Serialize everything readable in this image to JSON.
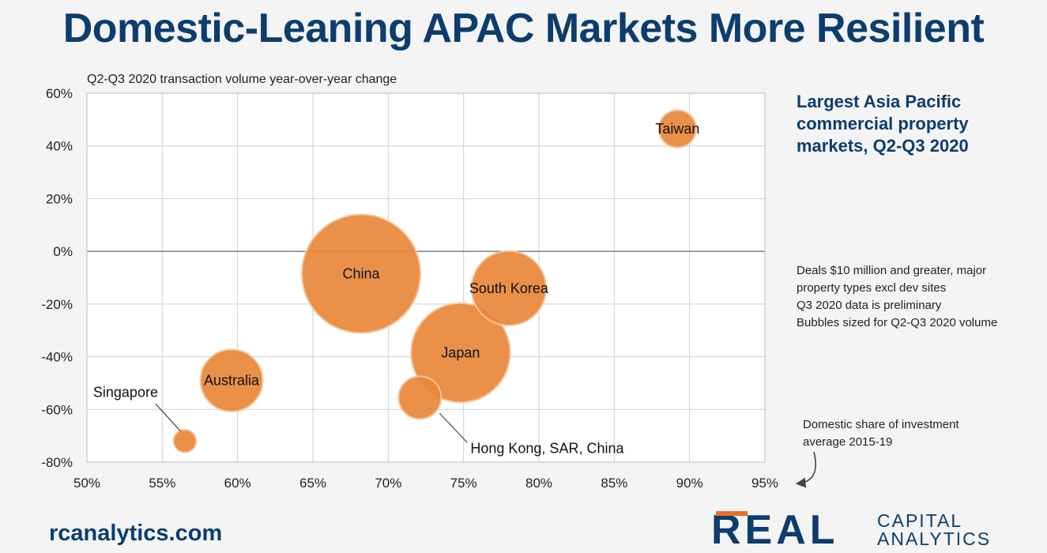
{
  "title": "Domestic-Leaning APAC Markets More Resilient",
  "side_title": [
    "Largest Asia Pacific",
    "commercial property",
    "markets, Q2-Q3 2020"
  ],
  "notes": [
    "Deals $10 million and greater, major",
    "property types excl dev sites",
    "Q3 2020 data is preliminary",
    "Bubbles sized for Q2-Q3 2020 volume"
  ],
  "website": "rcanalytics.com",
  "logo": {
    "word": "REAL",
    "line1": "CAPITAL",
    "line2": "ANALYTICS"
  },
  "colors": {
    "title": "#0c3d6e",
    "bubble": "#e8873a",
    "bubble_edge": "#f6c59a",
    "grid": "#cfcfcf",
    "accent": "#e8702a"
  },
  "chart_data": {
    "type": "scatter",
    "subtitle": "Q2-Q3 2020 transaction volume year-over-year change",
    "xlabel": [
      "Domestic share of investment",
      "average 2015-19"
    ],
    "x_ticks": [
      "50%",
      "55%",
      "60%",
      "65%",
      "70%",
      "75%",
      "80%",
      "85%",
      "90%",
      "95%"
    ],
    "y_ticks": [
      "60%",
      "40%",
      "20%",
      "0%",
      "-20%",
      "-40%",
      "-60%",
      "-80%"
    ],
    "xlim": [
      50,
      95
    ],
    "ylim": [
      -80,
      60
    ],
    "points": [
      {
        "name": "China",
        "x": 68.2,
        "y": -8.5,
        "volume": 4.96
      },
      {
        "name": "South Korea",
        "x": 78.0,
        "y": -14.0,
        "volume": 1.96
      },
      {
        "name": "Japan",
        "x": 74.8,
        "y": -38.5,
        "volume": 3.46
      },
      {
        "name": "Australia",
        "x": 59.6,
        "y": -49.0,
        "volume": 1.36
      },
      {
        "name": "Hong Kong, SAR, China",
        "x": 72.1,
        "y": -55.5,
        "volume": 0.64
      },
      {
        "name": "Singapore",
        "x": 56.5,
        "y": -72.0,
        "volume": 0.18
      },
      {
        "name": "Taiwan",
        "x": 89.2,
        "y": 46.5,
        "volume": 0.49
      }
    ]
  }
}
